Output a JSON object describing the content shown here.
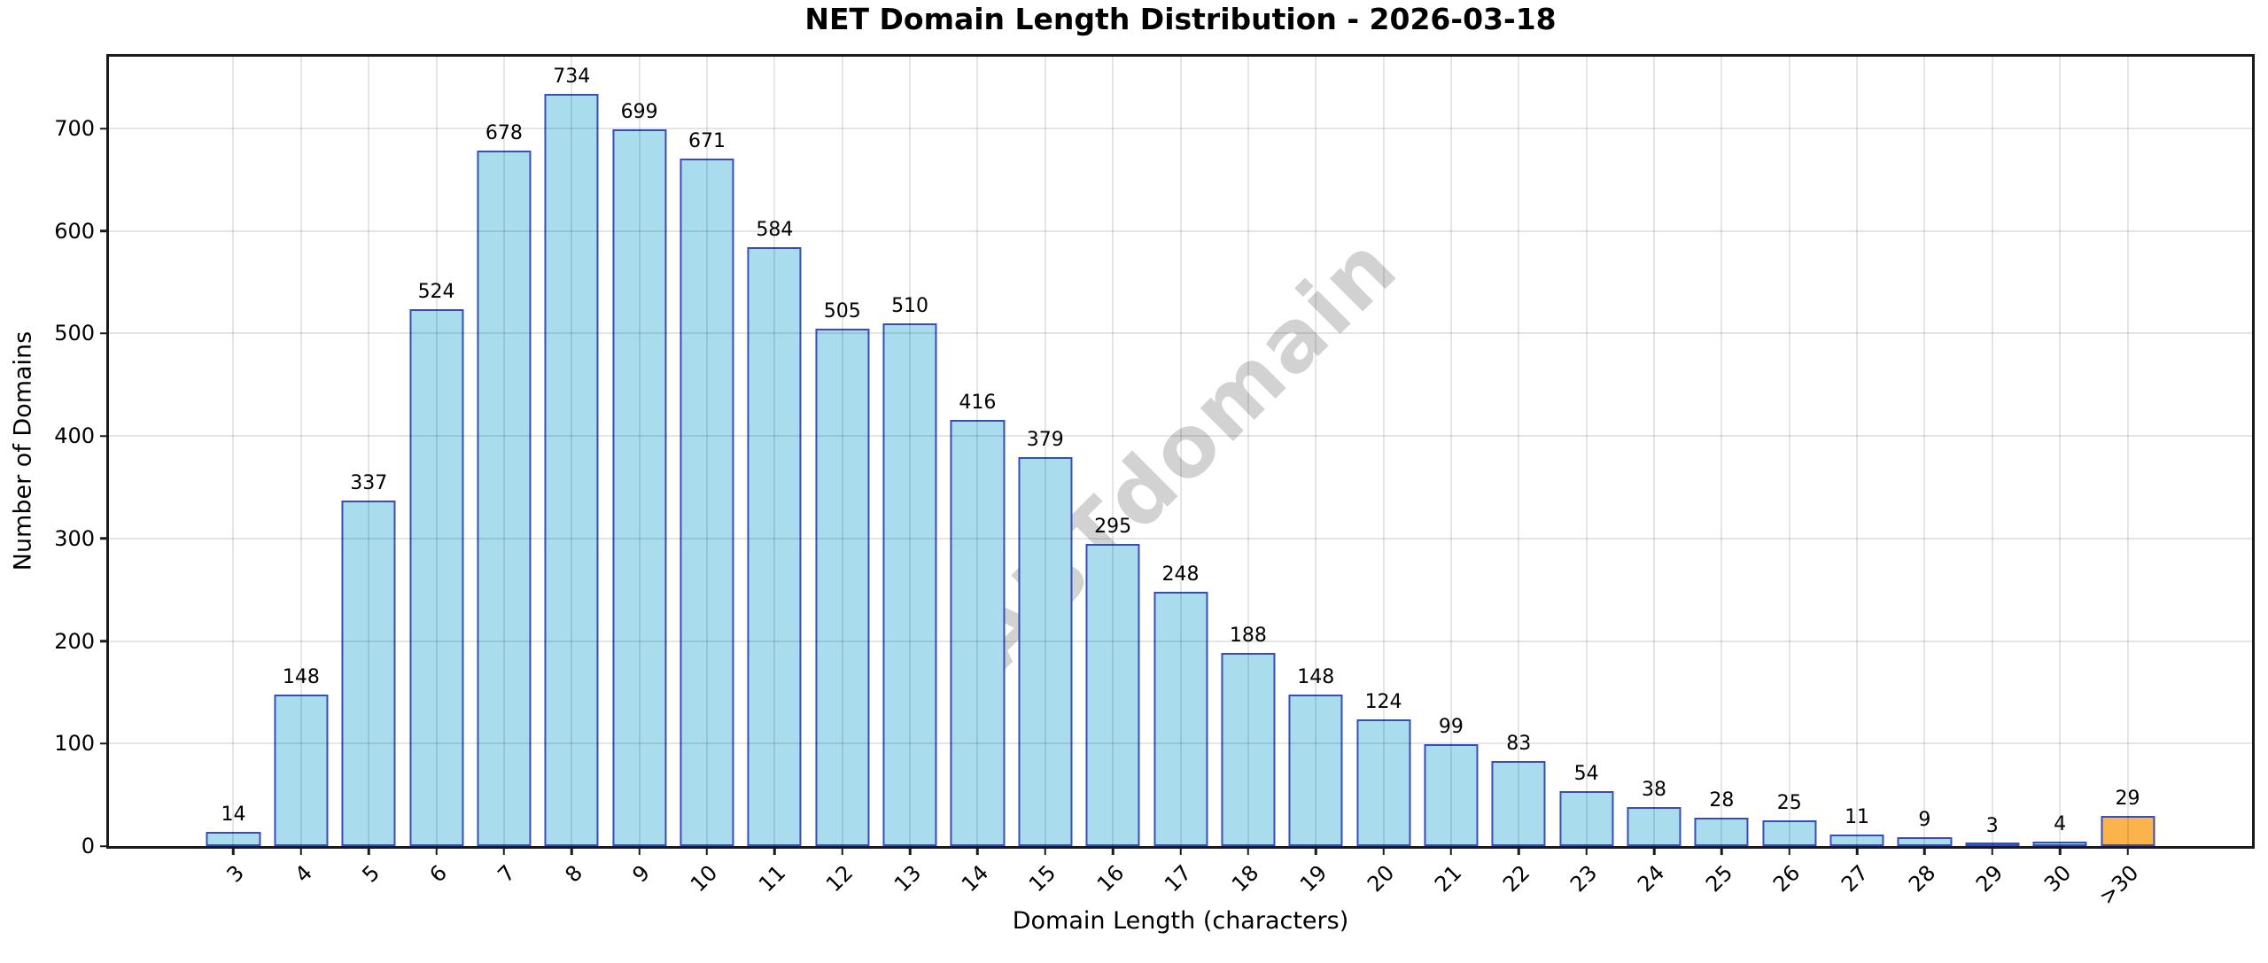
{
  "chart_data": {
    "type": "bar",
    "title": "NET Domain Length Distribution - 2026-03-18",
    "xlabel": "Domain Length (characters)",
    "ylabel": "Number of Domains",
    "categories": [
      "3",
      "4",
      "5",
      "6",
      "7",
      "8",
      "9",
      "10",
      "11",
      "12",
      "13",
      "14",
      "15",
      "16",
      "17",
      "18",
      "19",
      "20",
      "21",
      "22",
      "23",
      "24",
      "25",
      "26",
      "27",
      "28",
      "29",
      "30",
      ">30"
    ],
    "values": [
      14,
      148,
      337,
      524,
      678,
      734,
      699,
      671,
      584,
      505,
      510,
      416,
      379,
      295,
      248,
      188,
      148,
      124,
      99,
      83,
      54,
      38,
      28,
      25,
      11,
      9,
      3,
      4,
      29
    ],
    "yticks": [
      0,
      100,
      200,
      300,
      400,
      500,
      600,
      700
    ],
    "ylim": [
      0,
      770
    ],
    "x_pad": 1.84,
    "bar_width_units": 0.8,
    "grid": true,
    "legend": null,
    "highlight_index": 28,
    "watermark": "ABTdomain",
    "colors": {
      "bar_fill": "#a9dcec",
      "bar_edge": "#3a4cb8",
      "highlight_fill": "#fbb44c",
      "grid": "rgba(0,0,0,0.10)",
      "spine": "#1a1a1a",
      "watermark": "#d2d2d2",
      "text": "#000000"
    }
  }
}
